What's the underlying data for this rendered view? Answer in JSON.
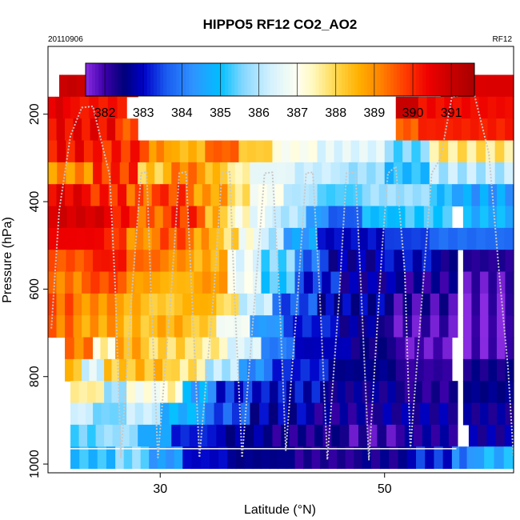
{
  "chart_data": {
    "type": "heatmap",
    "title": "HIPPO5 RF12 CO2_AO2",
    "top_left_label": "20110906",
    "top_right_label": "RF12",
    "xlabel": "Latitude (°N)",
    "ylabel": "Pressure (hPa)",
    "xlim": [
      20,
      61.5
    ],
    "ylim": [
      1020,
      45
    ],
    "y_reversed": true,
    "x_ticks": [
      30,
      50
    ],
    "y_ticks": [
      200,
      400,
      600,
      800,
      1000
    ],
    "grid": false,
    "colorbar": {
      "position": "top-inside",
      "min": 381.5,
      "max": 391.6,
      "ticks": [
        382,
        383,
        384,
        385,
        386,
        387,
        388,
        389,
        390,
        391
      ],
      "stops": [
        [
          381.5,
          "#8a2be2"
        ],
        [
          382.0,
          "#3b00a8"
        ],
        [
          382.5,
          "#00007a"
        ],
        [
          383.0,
          "#0000c8"
        ],
        [
          383.6,
          "#1a5cf0"
        ],
        [
          384.3,
          "#2f94ff"
        ],
        [
          385.0,
          "#00bfff"
        ],
        [
          385.6,
          "#87d8ff"
        ],
        [
          386.3,
          "#d4f1ff"
        ],
        [
          387.0,
          "#fffff0"
        ],
        [
          387.4,
          "#fff8c0"
        ],
        [
          388.0,
          "#ffd84d"
        ],
        [
          388.6,
          "#ffb000"
        ],
        [
          389.2,
          "#ff7f00"
        ],
        [
          389.8,
          "#ff3c00"
        ],
        [
          390.4,
          "#ee0000"
        ],
        [
          391.0,
          "#c80000"
        ],
        [
          391.6,
          "#a80000"
        ]
      ]
    },
    "pressure_levels": [
      135,
      185,
      235,
      285,
      335,
      385,
      435,
      485,
      535,
      585,
      635,
      685,
      735,
      785,
      835,
      885,
      935,
      985
    ],
    "rows": [
      {
        "p": 135,
        "segments": [
          [
            21,
            28,
            391.0
          ],
          [
            55,
            61.5,
            390.7
          ]
        ]
      },
      {
        "p": 185,
        "segments": [
          [
            20,
            22,
            390.6
          ],
          [
            22,
            27,
            390.2
          ],
          [
            51,
            53,
            391.0
          ],
          [
            53,
            61.5,
            390.3
          ]
        ]
      },
      {
        "p": 235,
        "segments": [
          [
            20,
            26,
            390.4
          ],
          [
            26,
            28,
            389.6
          ],
          [
            51,
            53,
            389.5
          ],
          [
            53,
            61.5,
            390.1
          ]
        ]
      },
      {
        "p": 285,
        "segments": [
          [
            20,
            24,
            390.3
          ],
          [
            24,
            29,
            390.0
          ],
          [
            29,
            31,
            389.0
          ],
          [
            31,
            34,
            388.5
          ],
          [
            34,
            37,
            389.5
          ],
          [
            37,
            40,
            388.2
          ],
          [
            40,
            44,
            387.0
          ],
          [
            44,
            50,
            386.5
          ],
          [
            50,
            54,
            385.5
          ],
          [
            54,
            61.5,
            387.8
          ]
        ]
      },
      {
        "p": 335,
        "segments": [
          [
            20,
            24,
            389.0
          ],
          [
            24,
            28,
            389.9
          ],
          [
            28,
            31,
            388.2
          ],
          [
            31,
            34,
            389.2
          ],
          [
            34,
            36,
            388.4
          ],
          [
            36,
            38,
            387.5
          ],
          [
            38,
            42,
            386.6
          ],
          [
            42,
            46,
            386.2
          ],
          [
            46,
            50,
            385.8
          ],
          [
            50,
            54,
            385.0
          ],
          [
            54,
            61.5,
            386.0
          ]
        ]
      },
      {
        "p": 385,
        "segments": [
          [
            20,
            23,
            390.5
          ],
          [
            23,
            27,
            390.0
          ],
          [
            27,
            30,
            389.5
          ],
          [
            30,
            33,
            389.8
          ],
          [
            33,
            36,
            388.8
          ],
          [
            36,
            38,
            387.8
          ],
          [
            38,
            41,
            386.9
          ],
          [
            41,
            44,
            386.0
          ],
          [
            44,
            48,
            385.3
          ],
          [
            48,
            54,
            385.8
          ],
          [
            54,
            56,
            385.0
          ],
          [
            56,
            57,
            384.8
          ],
          [
            57,
            61.5,
            384.5
          ]
        ]
      },
      {
        "p": 435,
        "segments": [
          [
            20,
            25,
            390.8
          ],
          [
            25,
            28,
            390.2
          ],
          [
            28,
            31,
            389.4
          ],
          [
            31,
            34,
            389.9
          ],
          [
            34,
            36,
            388.5
          ],
          [
            36,
            38,
            387.2
          ],
          [
            38,
            40,
            386.7
          ],
          [
            40,
            43,
            386.0
          ],
          [
            43,
            45,
            384.4
          ],
          [
            45,
            48,
            383.6
          ],
          [
            48,
            51,
            385.0
          ],
          [
            51,
            56,
            385.2
          ],
          [
            57,
            61.5,
            384.8
          ]
        ]
      },
      {
        "p": 485,
        "segments": [
          [
            20,
            25,
            390.4
          ],
          [
            25,
            27,
            389.9
          ],
          [
            27,
            30,
            389.0
          ],
          [
            30,
            33,
            389.6
          ],
          [
            33,
            35,
            388.8
          ],
          [
            35,
            37,
            388.0
          ],
          [
            37,
            39,
            387.0
          ],
          [
            39,
            41,
            386.0
          ],
          [
            41,
            44,
            384.5
          ],
          [
            44,
            50,
            383.0
          ],
          [
            50,
            54,
            383.4
          ],
          [
            54,
            61.5,
            383.8
          ]
        ]
      },
      {
        "p": 535,
        "segments": [
          [
            20,
            24,
            389.6
          ],
          [
            24,
            27,
            390.2
          ],
          [
            27,
            30,
            389.4
          ],
          [
            30,
            33,
            389.0
          ],
          [
            33,
            36,
            388.6
          ],
          [
            36,
            39,
            386.6
          ],
          [
            39,
            42,
            385.5
          ],
          [
            42,
            45,
            383.8
          ],
          [
            45,
            50,
            382.7
          ],
          [
            50,
            55,
            383.0
          ],
          [
            55,
            56.5,
            382.4
          ],
          [
            57,
            61.5,
            382.2
          ]
        ]
      },
      {
        "p": 585,
        "segments": [
          [
            20,
            23,
            389.2
          ],
          [
            23,
            27,
            389.7
          ],
          [
            27,
            30,
            388.8
          ],
          [
            30,
            33,
            388.5
          ],
          [
            33,
            36,
            388.9
          ],
          [
            36,
            39,
            386.8
          ],
          [
            39,
            42,
            385.2
          ],
          [
            42,
            46,
            383.2
          ],
          [
            46,
            51,
            382.6
          ],
          [
            51,
            56.5,
            382.3
          ],
          [
            57,
            61.5,
            381.9
          ]
        ]
      },
      {
        "p": 635,
        "segments": [
          [
            20,
            23,
            389.5
          ],
          [
            23,
            26,
            389.0
          ],
          [
            26,
            29,
            388.6
          ],
          [
            29,
            32,
            388.2
          ],
          [
            32,
            35,
            388.6
          ],
          [
            35,
            37,
            387.9
          ],
          [
            37,
            40,
            386.2
          ],
          [
            40,
            44,
            383.6
          ],
          [
            44,
            50,
            382.8
          ],
          [
            50,
            56.5,
            382.1
          ],
          [
            57,
            61.5,
            381.8
          ]
        ]
      },
      {
        "p": 685,
        "segments": [
          [
            20,
            23,
            389.3
          ],
          [
            23,
            26,
            388.8
          ],
          [
            26,
            29,
            388.4
          ],
          [
            29,
            32,
            388.6
          ],
          [
            32,
            35,
            388.2
          ],
          [
            35,
            38,
            386.8
          ],
          [
            38,
            41,
            384.4
          ],
          [
            41,
            46,
            383.2
          ],
          [
            46,
            50,
            382.6
          ],
          [
            50,
            56.5,
            381.9
          ],
          [
            57,
            61.5,
            381.7
          ]
        ]
      },
      {
        "p": 735,
        "segments": [
          [
            21.5,
            24,
            389.2
          ],
          [
            24,
            26,
            387.4
          ],
          [
            26,
            29,
            388.6
          ],
          [
            29,
            33,
            388.0
          ],
          [
            33,
            36,
            387.6
          ],
          [
            36,
            39,
            386.4
          ],
          [
            39,
            42,
            384.0
          ],
          [
            42,
            47,
            382.9
          ],
          [
            47,
            51,
            382.4
          ],
          [
            51,
            56,
            381.8
          ],
          [
            57,
            61.5,
            381.8
          ]
        ]
      },
      {
        "p": 785,
        "segments": [
          [
            21.5,
            23,
            388.4
          ],
          [
            23,
            25,
            386.4
          ],
          [
            25,
            27,
            388.2
          ],
          [
            27,
            31,
            388.4
          ],
          [
            31,
            34,
            387.8
          ],
          [
            34,
            37,
            386.0
          ],
          [
            37,
            40,
            384.2
          ],
          [
            40,
            45,
            383.2
          ],
          [
            45,
            51,
            382.6
          ],
          [
            51,
            56,
            382.1
          ],
          [
            57,
            61.5,
            382.4
          ]
        ]
      },
      {
        "p": 835,
        "segments": [
          [
            22,
            25,
            387.6
          ],
          [
            25,
            27,
            385.8
          ],
          [
            27,
            30,
            387.0
          ],
          [
            30,
            32,
            387.4
          ],
          [
            32,
            35,
            384.6
          ],
          [
            35,
            39,
            383.2
          ],
          [
            39,
            45,
            383.0
          ],
          [
            45,
            51,
            382.5
          ],
          [
            51,
            56.5,
            382.2
          ],
          [
            57,
            61.5,
            382.6
          ]
        ]
      },
      {
        "p": 885,
        "segments": [
          [
            22,
            24,
            386.3
          ],
          [
            24,
            27,
            385.5
          ],
          [
            27,
            30,
            386.2
          ],
          [
            30,
            34,
            384.8
          ],
          [
            34,
            38,
            383.6
          ],
          [
            38,
            43,
            382.8
          ],
          [
            43,
            49,
            382.4
          ],
          [
            49,
            56.5,
            382.6
          ],
          [
            57,
            61.5,
            382.5
          ]
        ]
      },
      {
        "p": 935,
        "segments": [
          [
            22,
            25,
            385.4
          ],
          [
            25,
            28,
            385.8
          ],
          [
            28,
            31,
            384.6
          ],
          [
            31,
            35,
            383.2
          ],
          [
            35,
            40,
            382.7
          ],
          [
            40,
            46,
            382.3
          ],
          [
            46,
            51,
            382.0
          ],
          [
            51,
            56.5,
            382.4
          ],
          [
            57.5,
            61.5,
            382.6
          ]
        ]
      },
      {
        "p": 985,
        "segments": [
          [
            22,
            26,
            385.0
          ],
          [
            26,
            29,
            385.6
          ],
          [
            29,
            32,
            384.4
          ],
          [
            32,
            36,
            383.0
          ],
          [
            36,
            42,
            382.6
          ],
          [
            42,
            48,
            382.2
          ],
          [
            48,
            52,
            382.4
          ],
          [
            52,
            56,
            383.2
          ],
          [
            56,
            58,
            384.0
          ],
          [
            58,
            61.5,
            384.8
          ]
        ]
      }
    ],
    "flight_track": [
      [
        20.3,
        690
      ],
      [
        21.0,
        420
      ],
      [
        22.0,
        250
      ],
      [
        23.0,
        185
      ],
      [
        24.0,
        182
      ],
      [
        25.5,
        340
      ],
      [
        26.0,
        600
      ],
      [
        26.5,
        985
      ],
      [
        27.5,
        600
      ],
      [
        28.3,
        335
      ],
      [
        28.8,
        332
      ],
      [
        29.2,
        620
      ],
      [
        29.8,
        985
      ],
      [
        31.0,
        600
      ],
      [
        31.7,
        335
      ],
      [
        32.3,
        332
      ],
      [
        32.8,
        600
      ],
      [
        33.5,
        985
      ],
      [
        34.8,
        600
      ],
      [
        35.5,
        335
      ],
      [
        36.2,
        332
      ],
      [
        36.6,
        600
      ],
      [
        37.3,
        985
      ],
      [
        38.5,
        600
      ],
      [
        39.3,
        335
      ],
      [
        40.0,
        333
      ],
      [
        40.6,
        600
      ],
      [
        41.2,
        970
      ],
      [
        42.3,
        600
      ],
      [
        43.0,
        335
      ],
      [
        43.6,
        333
      ],
      [
        44.2,
        600
      ],
      [
        44.9,
        990
      ],
      [
        46.0,
        600
      ],
      [
        46.6,
        335
      ],
      [
        47.4,
        333
      ],
      [
        47.9,
        600
      ],
      [
        48.6,
        990
      ],
      [
        49.8,
        500
      ],
      [
        50.3,
        335
      ],
      [
        51.0,
        320
      ],
      [
        51.8,
        560
      ],
      [
        52.3,
        965
      ],
      [
        53.4,
        600
      ],
      [
        54.2,
        335
      ],
      [
        55.0,
        300
      ],
      [
        56.0,
        160
      ],
      [
        57.2,
        155
      ],
      [
        58.0,
        155
      ],
      [
        59.3,
        290
      ],
      [
        60.2,
        560
      ],
      [
        61.0,
        780
      ],
      [
        61.5,
        985
      ]
    ],
    "flight_track_color": "#c8c8c8",
    "reference_line_p": 965,
    "reference_line_color": "#ffffff"
  }
}
